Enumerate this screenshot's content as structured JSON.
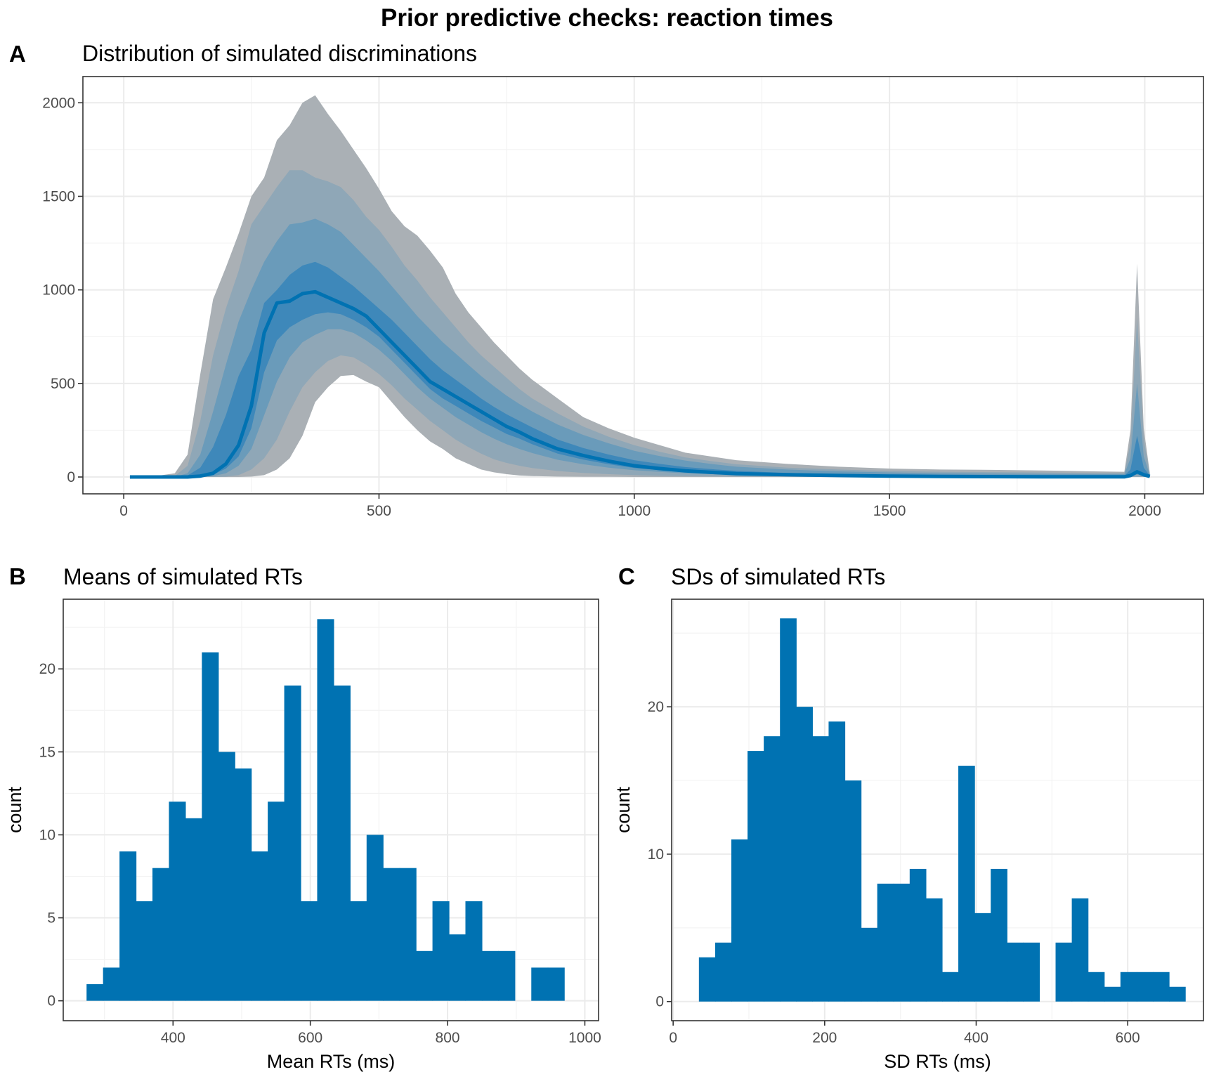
{
  "title": "Prior predictive checks: reaction times",
  "colors": {
    "series": "#0072B2",
    "band_outer": "#AAB0B5",
    "band_2": "#8FA7B7",
    "band_3": "#6A9BBA",
    "band_4": "#3E88BA"
  },
  "chart_data": [
    {
      "panel": "A",
      "type": "area",
      "title": "Distribution of simulated discriminations",
      "xlabel": "",
      "ylabel": "",
      "xlim": [
        -80,
        2115
      ],
      "ylim": [
        -90,
        2140
      ],
      "x_ticks": [
        0,
        500,
        1000,
        1500,
        2000
      ],
      "y_ticks": [
        0,
        500,
        1000,
        1500,
        2000
      ],
      "grid": true,
      "x": [
        12,
        50,
        100,
        125,
        150,
        175,
        200,
        225,
        250,
        275,
        300,
        325,
        350,
        375,
        400,
        425,
        450,
        475,
        500,
        525,
        550,
        575,
        600,
        625,
        650,
        675,
        700,
        725,
        750,
        775,
        800,
        850,
        900,
        950,
        1000,
        1050,
        1100,
        1150,
        1200,
        1300,
        1400,
        1500,
        1600,
        1700,
        1800,
        1900,
        1960,
        1972,
        1985,
        1998,
        2010
      ],
      "median": [
        0,
        0,
        0,
        0,
        5,
        20,
        70,
        170,
        380,
        770,
        930,
        940,
        980,
        990,
        960,
        930,
        900,
        860,
        790,
        720,
        650,
        580,
        510,
        470,
        430,
        390,
        350,
        310,
        270,
        240,
        205,
        150,
        115,
        85,
        60,
        45,
        33,
        25,
        18,
        12,
        8,
        5,
        3,
        2,
        1,
        1,
        1,
        8,
        28,
        12,
        3
      ],
      "bands": [
        {
          "lower": [
            0,
            0,
            0,
            0,
            0,
            0,
            0,
            0,
            2,
            10,
            40,
            100,
            220,
            400,
            480,
            540,
            545,
            510,
            480,
            400,
            320,
            250,
            190,
            150,
            100,
            70,
            40,
            25,
            15,
            8,
            5,
            2,
            1,
            1,
            0,
            0,
            0,
            0,
            0,
            0,
            0,
            0,
            0,
            0,
            0,
            0,
            0,
            0,
            0,
            0,
            0
          ],
          "upper": [
            0,
            0,
            20,
            120,
            550,
            950,
            1120,
            1300,
            1500,
            1600,
            1800,
            1880,
            2000,
            2040,
            1940,
            1850,
            1750,
            1650,
            1540,
            1420,
            1340,
            1290,
            1210,
            1120,
            980,
            880,
            800,
            720,
            650,
            580,
            520,
            420,
            320,
            260,
            210,
            170,
            130,
            110,
            90,
            70,
            55,
            45,
            40,
            38,
            35,
            30,
            28,
            250,
            1140,
            260,
            20
          ]
        },
        {
          "lower": [
            0,
            0,
            0,
            0,
            0,
            0,
            2,
            10,
            40,
            100,
            200,
            350,
            480,
            560,
            620,
            650,
            640,
            600,
            550,
            490,
            420,
            360,
            300,
            250,
            200,
            160,
            125,
            95,
            75,
            60,
            48,
            32,
            22,
            15,
            10,
            7,
            5,
            4,
            3,
            2,
            1,
            1,
            1,
            0,
            0,
            0,
            0,
            0,
            0,
            0,
            0
          ],
          "upper": [
            0,
            0,
            5,
            60,
            300,
            650,
            900,
            1100,
            1350,
            1450,
            1550,
            1640,
            1640,
            1600,
            1580,
            1550,
            1480,
            1390,
            1320,
            1230,
            1130,
            1050,
            960,
            880,
            800,
            720,
            650,
            590,
            530,
            470,
            420,
            340,
            270,
            215,
            170,
            135,
            105,
            85,
            68,
            50,
            40,
            32,
            28,
            26,
            24,
            22,
            22,
            180,
            850,
            200,
            15
          ]
        },
        {
          "lower": [
            0,
            0,
            0,
            0,
            0,
            5,
            20,
            60,
            150,
            330,
            510,
            640,
            720,
            760,
            790,
            790,
            770,
            730,
            680,
            620,
            550,
            480,
            420,
            370,
            320,
            280,
            240,
            205,
            175,
            150,
            128,
            92,
            68,
            50,
            36,
            27,
            20,
            15,
            11,
            7,
            5,
            3,
            2,
            1,
            1,
            1,
            1,
            4,
            12,
            5,
            1
          ],
          "upper": [
            0,
            0,
            1,
            20,
            120,
            350,
            600,
            830,
            1000,
            1150,
            1260,
            1350,
            1360,
            1380,
            1350,
            1310,
            1240,
            1170,
            1100,
            1020,
            940,
            860,
            790,
            720,
            660,
            600,
            540,
            485,
            435,
            390,
            350,
            280,
            225,
            180,
            140,
            112,
            88,
            70,
            55,
            40,
            30,
            24,
            20,
            18,
            16,
            15,
            15,
            100,
            500,
            110,
            10
          ]
        },
        {
          "lower": [
            0,
            0,
            0,
            0,
            2,
            12,
            45,
            110,
            260,
            560,
            730,
            800,
            840,
            870,
            880,
            870,
            840,
            800,
            750,
            680,
            610,
            540,
            470,
            420,
            380,
            340,
            300,
            265,
            230,
            205,
            175,
            125,
            93,
            68,
            48,
            36,
            27,
            20,
            15,
            10,
            6,
            4,
            2,
            1,
            1,
            1,
            1,
            5,
            18,
            7,
            2
          ],
          "upper": [
            0,
            0,
            0,
            8,
            50,
            160,
            330,
            540,
            680,
            930,
            1000,
            1080,
            1130,
            1150,
            1120,
            1070,
            1020,
            960,
            900,
            840,
            770,
            700,
            630,
            570,
            520,
            470,
            420,
            375,
            335,
            300,
            265,
            200,
            155,
            120,
            90,
            70,
            53,
            42,
            33,
            22,
            16,
            12,
            10,
            8,
            7,
            6,
            6,
            40,
            220,
            50,
            6
          ]
        }
      ]
    },
    {
      "panel": "B",
      "type": "bar",
      "title": "Means of simulated RTs",
      "xlabel": "Mean RTs (ms)",
      "ylabel": "count",
      "xlim": [
        240,
        1020
      ],
      "ylim": [
        -1.2,
        24.2
      ],
      "x_ticks": [
        400,
        600,
        800,
        1000
      ],
      "y_ticks": [
        0,
        5,
        10,
        15,
        20
      ],
      "grid": true,
      "bin_width": 24,
      "bin_start": 274,
      "values": [
        1,
        2,
        9,
        6,
        8,
        12,
        11,
        21,
        15,
        14,
        9,
        12,
        19,
        6,
        23,
        19,
        6,
        10,
        8,
        8,
        3,
        6,
        4,
        6,
        3,
        3,
        0,
        2,
        2
      ]
    },
    {
      "panel": "C",
      "type": "bar",
      "title": "SDs of simulated RTs",
      "xlabel": "SD RTs (ms)",
      "ylabel": "count",
      "xlim": [
        -2,
        700
      ],
      "ylim": [
        -1.3,
        27.3
      ],
      "x_ticks": [
        0,
        200,
        400,
        600
      ],
      "y_ticks": [
        0,
        10,
        20
      ],
      "grid": true,
      "bin_width": 21.4,
      "bin_start": 34,
      "values": [
        3,
        4,
        11,
        17,
        18,
        26,
        20,
        18,
        19,
        15,
        5,
        8,
        8,
        9,
        7,
        2,
        16,
        6,
        9,
        4,
        4,
        0,
        4,
        7,
        2,
        1,
        2,
        2,
        2,
        1
      ]
    }
  ]
}
